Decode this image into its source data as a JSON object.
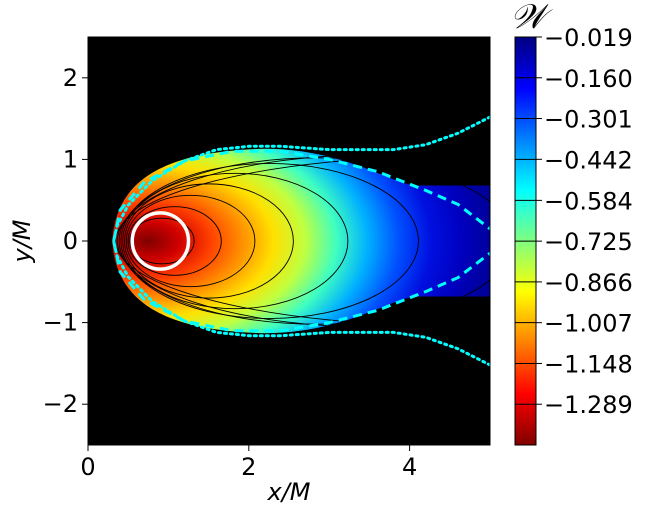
{
  "chart_data": {
    "type": "heatmap",
    "title": "",
    "xlabel": "x/M",
    "ylabel": "y/M",
    "xlim": [
      0,
      5
    ],
    "ylim": [
      -2.5,
      2.5
    ],
    "x_ticks": [
      0,
      2,
      4
    ],
    "x_tick_labels": [
      "0",
      "2",
      "4"
    ],
    "y_ticks": [
      2,
      1,
      0,
      -1,
      -2
    ],
    "y_tick_labels": [
      "2",
      "1",
      "0",
      "−1",
      "−2"
    ],
    "colormap": "jet_reversed",
    "background_color": "#000000",
    "colorbar": {
      "label": "𝒲",
      "range": [
        -1.43,
        -0.019
      ],
      "levels": [
        -0.019,
        -0.16,
        -0.301,
        -0.442,
        -0.584,
        -0.725,
        -0.866,
        -1.007,
        -1.148,
        -1.289
      ],
      "tick_labels": [
        "−0.019",
        "−0.160",
        "−0.301",
        "−0.442",
        "−0.584",
        "−0.725",
        "−0.866",
        "−1.007",
        "−1.148",
        "−1.289"
      ]
    },
    "field": {
      "center_x": 0.75,
      "center_y": 0,
      "peak_value": -1.43
    },
    "white_circle": {
      "center_x": 0.9,
      "center_y": 0,
      "radius": 0.35,
      "color": "#ffffff"
    },
    "boundaries": [
      {
        "style": "dotted",
        "color": "#00ffff",
        "upper": [
          [
            5.0,
            1.52
          ],
          [
            4.6,
            1.32
          ],
          [
            4.2,
            1.18
          ],
          [
            3.8,
            1.12
          ],
          [
            3.0,
            1.12
          ],
          [
            2.4,
            1.16
          ],
          [
            2.0,
            1.16
          ],
          [
            1.6,
            1.12
          ],
          [
            1.2,
            0.98
          ],
          [
            0.8,
            0.74
          ],
          [
            0.5,
            0.44
          ],
          [
            0.36,
            0.18
          ],
          [
            0.32,
            0.0
          ]
        ]
      },
      {
        "style": "dashed",
        "color": "#00ffff",
        "upper": [
          [
            0.32,
            0.0
          ],
          [
            0.4,
            0.38
          ],
          [
            0.7,
            0.72
          ],
          [
            1.2,
            0.98
          ],
          [
            1.8,
            1.1
          ],
          [
            2.4,
            1.1
          ],
          [
            3.0,
            1.0
          ],
          [
            3.6,
            0.85
          ],
          [
            4.2,
            0.62
          ],
          [
            4.6,
            0.45
          ],
          [
            5.0,
            0.15
          ]
        ]
      }
    ],
    "shape_edge": {
      "start": [
        0.3,
        0.0
      ],
      "mid": [
        1.0,
        1.05
      ],
      "top": [
        2.2,
        1.13
      ],
      "flat_start": [
        4.1,
        0.68
      ],
      "right": [
        5.0,
        0.68
      ]
    },
    "contour_count": 9,
    "contour_color": "#000000"
  }
}
